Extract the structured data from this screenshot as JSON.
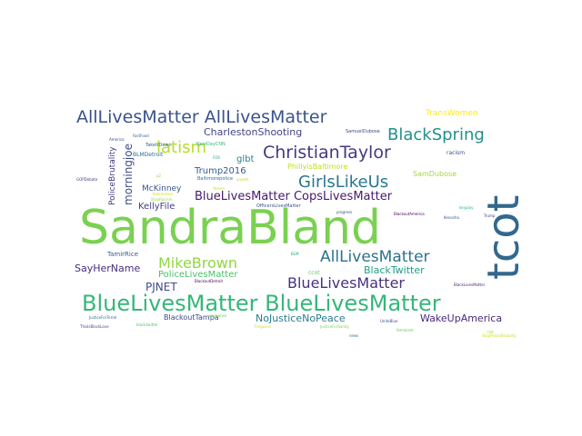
{
  "words": [
    {
      "text": "SandraBland",
      "color": "#7ad151"
    },
    {
      "text": "tcot",
      "color": "#31688e"
    },
    {
      "text": "BlueLivesMatter BlueLivesMatter",
      "color": "#35b779"
    },
    {
      "text": "AllLivesMatter AllLivesMatter",
      "color": "#3b528b"
    },
    {
      "text": "ChristianTaylor",
      "color": "#443a83"
    },
    {
      "text": "BlackSpring",
      "color": "#21918c"
    },
    {
      "text": "GirlsLikeUs",
      "color": "#2a788e"
    },
    {
      "text": "AllLivesMatter",
      "color": "#2c728e"
    },
    {
      "text": "BlueLivesMatter",
      "color": "#46337e"
    },
    {
      "text": "latism",
      "color": "#b5de2b"
    },
    {
      "text": "MikeBrown",
      "color": "#90d743"
    },
    {
      "text": "BlueLivesMatter CopsLivesMatter",
      "color": "#481a6c"
    },
    {
      "text": "CharlestonShooting",
      "color": "#414487"
    },
    {
      "text": "SayHerName",
      "color": "#472d7b"
    },
    {
      "text": "PJNET",
      "color": "#3e4a89"
    },
    {
      "text": "NoJusticeNoPeace",
      "color": "#287c8e"
    },
    {
      "text": "WakeUpAmerica",
      "color": "#482878"
    },
    {
      "text": "BlackTwitter",
      "color": "#1fa088"
    },
    {
      "text": "PoliceLivesMatter",
      "color": "#4ac16d"
    },
    {
      "text": "Trump2016",
      "color": "#365c8d"
    },
    {
      "text": "KellyFile",
      "color": "#433e85"
    },
    {
      "text": "McKinney",
      "color": "#3a548c"
    },
    {
      "text": "glbt",
      "color": "#26828e"
    },
    {
      "text": "morningjoe",
      "color": "#3d4d8a"
    },
    {
      "text": "PoliceBrutality",
      "color": "#453781"
    },
    {
      "text": "BlackoutTampa",
      "color": "#3f4788"
    },
    {
      "text": "TransWomen",
      "color": "#fde725"
    },
    {
      "text": "PhillyisBaltimore",
      "color": "#c0df25"
    },
    {
      "text": "SamDubose",
      "color": "#a2da37"
    },
    {
      "text": "TamirRice",
      "color": "#38598c"
    },
    {
      "text": "BLMDetroit",
      "color": "#2e6e8e"
    },
    {
      "text": "TakeItDown",
      "color": "#30698e"
    },
    {
      "text": "NewDayCNN",
      "color": "#37b878"
    },
    {
      "text": "Baltimorepolice",
      "color": "#2d708e"
    },
    {
      "text": "OfficersLivesMatter",
      "color": "#3b528b"
    },
    {
      "text": "SamuelDubose",
      "color": "#3f4889"
    },
    {
      "text": "racism",
      "color": "#3c4f8a"
    },
    {
      "text": "BlackoutAmerica",
      "color": "#440154"
    },
    {
      "text": "ccot",
      "color": "#5ec962"
    },
    {
      "text": "BlackLivesMatter",
      "color": "#482576"
    },
    {
      "text": "BlackoutDetroit",
      "color": "#46085c"
    },
    {
      "text": "UniteBlue",
      "color": "#3c508b"
    },
    {
      "text": "JusticeForTerrel",
      "color": "#2f6b8e"
    },
    {
      "text": "ThisIsBlackLove",
      "color": "#414487"
    },
    {
      "text": "JusticeForSandy",
      "color": "#7fd34e"
    },
    {
      "text": "Ferguson",
      "color": "#bddf26"
    },
    {
      "text": "Kalamazoo",
      "color": "#d0e11c"
    },
    {
      "text": "FastFood",
      "color": "#32648e"
    },
    {
      "text": "Kenosha",
      "color": "#3b528b"
    },
    {
      "text": "StopRacism",
      "color": "#9bd93c"
    },
    {
      "text": "Yemen",
      "color": "#c5e021"
    },
    {
      "text": "FOX",
      "color": "#25ab82"
    },
    {
      "text": "BLM",
      "color": "#22a785"
    },
    {
      "text": "GOPDebate",
      "color": "#424086"
    },
    {
      "text": "keyplay",
      "color": "#2db27d"
    },
    {
      "text": "Trump",
      "color": "#404588"
    },
    {
      "text": "tlot",
      "color": "#9fda3a"
    },
    {
      "text": "gunsense",
      "color": "#6ece58"
    },
    {
      "text": "blacktwitter",
      "color": "#50c46a"
    },
    {
      "text": "feminism",
      "color": "#5cc863"
    },
    {
      "text": "unsafe",
      "color": "#b0dd2f"
    },
    {
      "text": "p2",
      "color": "#a0da39"
    },
    {
      "text": "news",
      "color": "#2c738e"
    },
    {
      "text": "America",
      "color": "#3e4989"
    },
    {
      "text": "progress",
      "color": "#3b528b"
    },
    {
      "text": "StopPoliceBrutality",
      "color": "#d2e21b"
    }
  ]
}
